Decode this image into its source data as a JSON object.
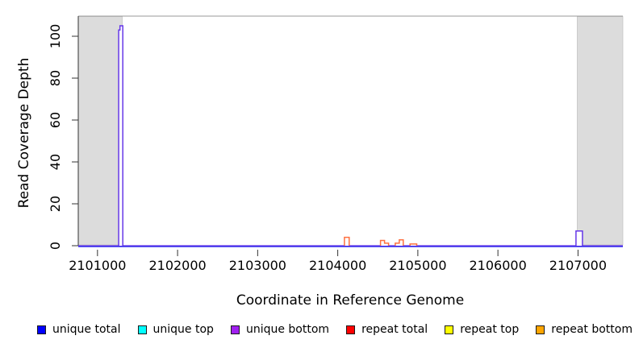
{
  "figure": {
    "background": "#FFFFFF",
    "shade_color": "#DCDCDC",
    "shade_border": "#BBBBBB",
    "axis_color": "#333333",
    "top_border_color": "#999999",
    "text_color": "#000000"
  },
  "chart_data": {
    "type": "line",
    "subtype": "step-coverage",
    "title": "",
    "xlabel": "Coordinate in Reference Genome",
    "ylabel": "Read Coverage Depth",
    "xlim": [
      2100760,
      2107560
    ],
    "ylim": [
      0,
      105
    ],
    "x_ticks": [
      2101000,
      2102000,
      2103000,
      2104000,
      2105000,
      2106000,
      2107000
    ],
    "y_ticks": [
      0,
      20,
      40,
      60,
      80,
      100
    ],
    "grid": false,
    "legend_position": "bottom",
    "shaded_regions": [
      {
        "from": 2100760,
        "to": 2101310
      },
      {
        "from": 2106990,
        "to": 2107560
      }
    ],
    "series": [
      {
        "name": "unique total",
        "legend_color": "#0000FF",
        "render_color": "#2222EE",
        "baseline": 0,
        "peaks": []
      },
      {
        "name": "unique top",
        "legend_color": "#00FFFF",
        "render_color": "#00EEEE",
        "baseline": null,
        "peaks": []
      },
      {
        "name": "unique bottom",
        "legend_color": "#A020F0",
        "render_color": "#6638E8",
        "baseline": 0,
        "peaks": [
          {
            "x": [
              2101265,
              2101281,
              2101316
            ],
            "h": [
              103,
              105
            ]
          },
          {
            "x": [
              2106975,
              2107055
            ],
            "h": [
              7
            ]
          }
        ]
      },
      {
        "name": "repeat total",
        "legend_color": "#FF0000",
        "render_color": "#EE0000",
        "baseline": null,
        "peaks": []
      },
      {
        "name": "repeat top",
        "legend_color": "#FFFF00",
        "render_color": "#FFFF00",
        "baseline": null,
        "peaks": []
      },
      {
        "name": "repeat bottom",
        "legend_color": "#FFA500",
        "render_color": "#FF7040",
        "baseline": null,
        "peaks": [
          {
            "x": [
              2104083,
              2104143
            ],
            "h": [
              4
            ]
          },
          {
            "x": [
              2104534,
              2104584,
              2104634
            ],
            "h": [
              2.5,
              1.2
            ]
          },
          {
            "x": [
              2104718,
              2104768,
              2104818
            ],
            "h": [
              1.2,
              2.8
            ]
          },
          {
            "x": [
              2104902,
              2104986
            ],
            "h": [
              0.8
            ]
          }
        ]
      }
    ]
  }
}
